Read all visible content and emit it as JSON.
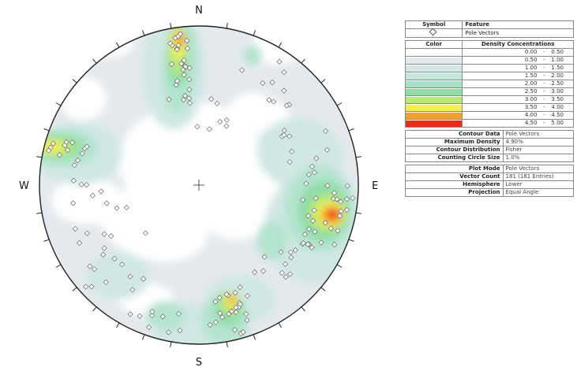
{
  "directions": {
    "north": "N",
    "south": "S",
    "east": "E",
    "west": "W"
  },
  "legend": {
    "symbol_header": "Symbol",
    "feature_header": "Feature",
    "symbol_icon": "diamond-icon",
    "feature_value": "Pole Vectors",
    "color_header": "Color",
    "density_header": "Density Concentrations",
    "density_bins": [
      {
        "color": "#ffffff",
        "from": "0.00",
        "to": "0.50"
      },
      {
        "color": "#e4e9ee",
        "from": "0.50",
        "to": "1.00"
      },
      {
        "color": "#d4e6e8",
        "from": "1.00",
        "to": "1.50"
      },
      {
        "color": "#c2e6dc",
        "from": "1.50",
        "to": "2.00"
      },
      {
        "color": "#a8e2c6",
        "from": "2.00",
        "to": "2.50"
      },
      {
        "color": "#8fdca5",
        "from": "2.50",
        "to": "3.00"
      },
      {
        "color": "#b7e878",
        "from": "3.00",
        "to": "3.50"
      },
      {
        "color": "#f4ef52",
        "from": "3.50",
        "to": "4.00"
      },
      {
        "color": "#f6a02c",
        "from": "4.00",
        "to": "4.50"
      },
      {
        "color": "#ee2a14",
        "from": "4.50",
        "to": "5.00"
      }
    ],
    "contour_rows": [
      {
        "key": "Contour Data",
        "value": "Pole Vectors"
      },
      {
        "key": "Maximum Density",
        "value": "4.90%"
      },
      {
        "key": "Contour Distribution",
        "value": "Fisher"
      },
      {
        "key": "Counting Circle Size",
        "value": "1.0%"
      }
    ],
    "plot_rows": [
      {
        "key": "Plot Mode",
        "value": "Pole Vectors"
      },
      {
        "key": "Vector Count",
        "value": "181 (181 Entries)"
      },
      {
        "key": "Hemisphere",
        "value": "Lower"
      },
      {
        "key": "Projection",
        "value": "Equal Angle"
      }
    ]
  },
  "colors": {
    "bin_white": "#ffffff",
    "bin_pale": "#e4e9ee",
    "bin_light": "#d0e7e4",
    "bin_mint": "#b3e4cf",
    "bin_green": "#8fdca5",
    "bin_lime": "#b7e878",
    "bin_yellow": "#f4ef52",
    "bin_orange": "#f6a02c",
    "bin_red": "#ee2a14"
  }
}
